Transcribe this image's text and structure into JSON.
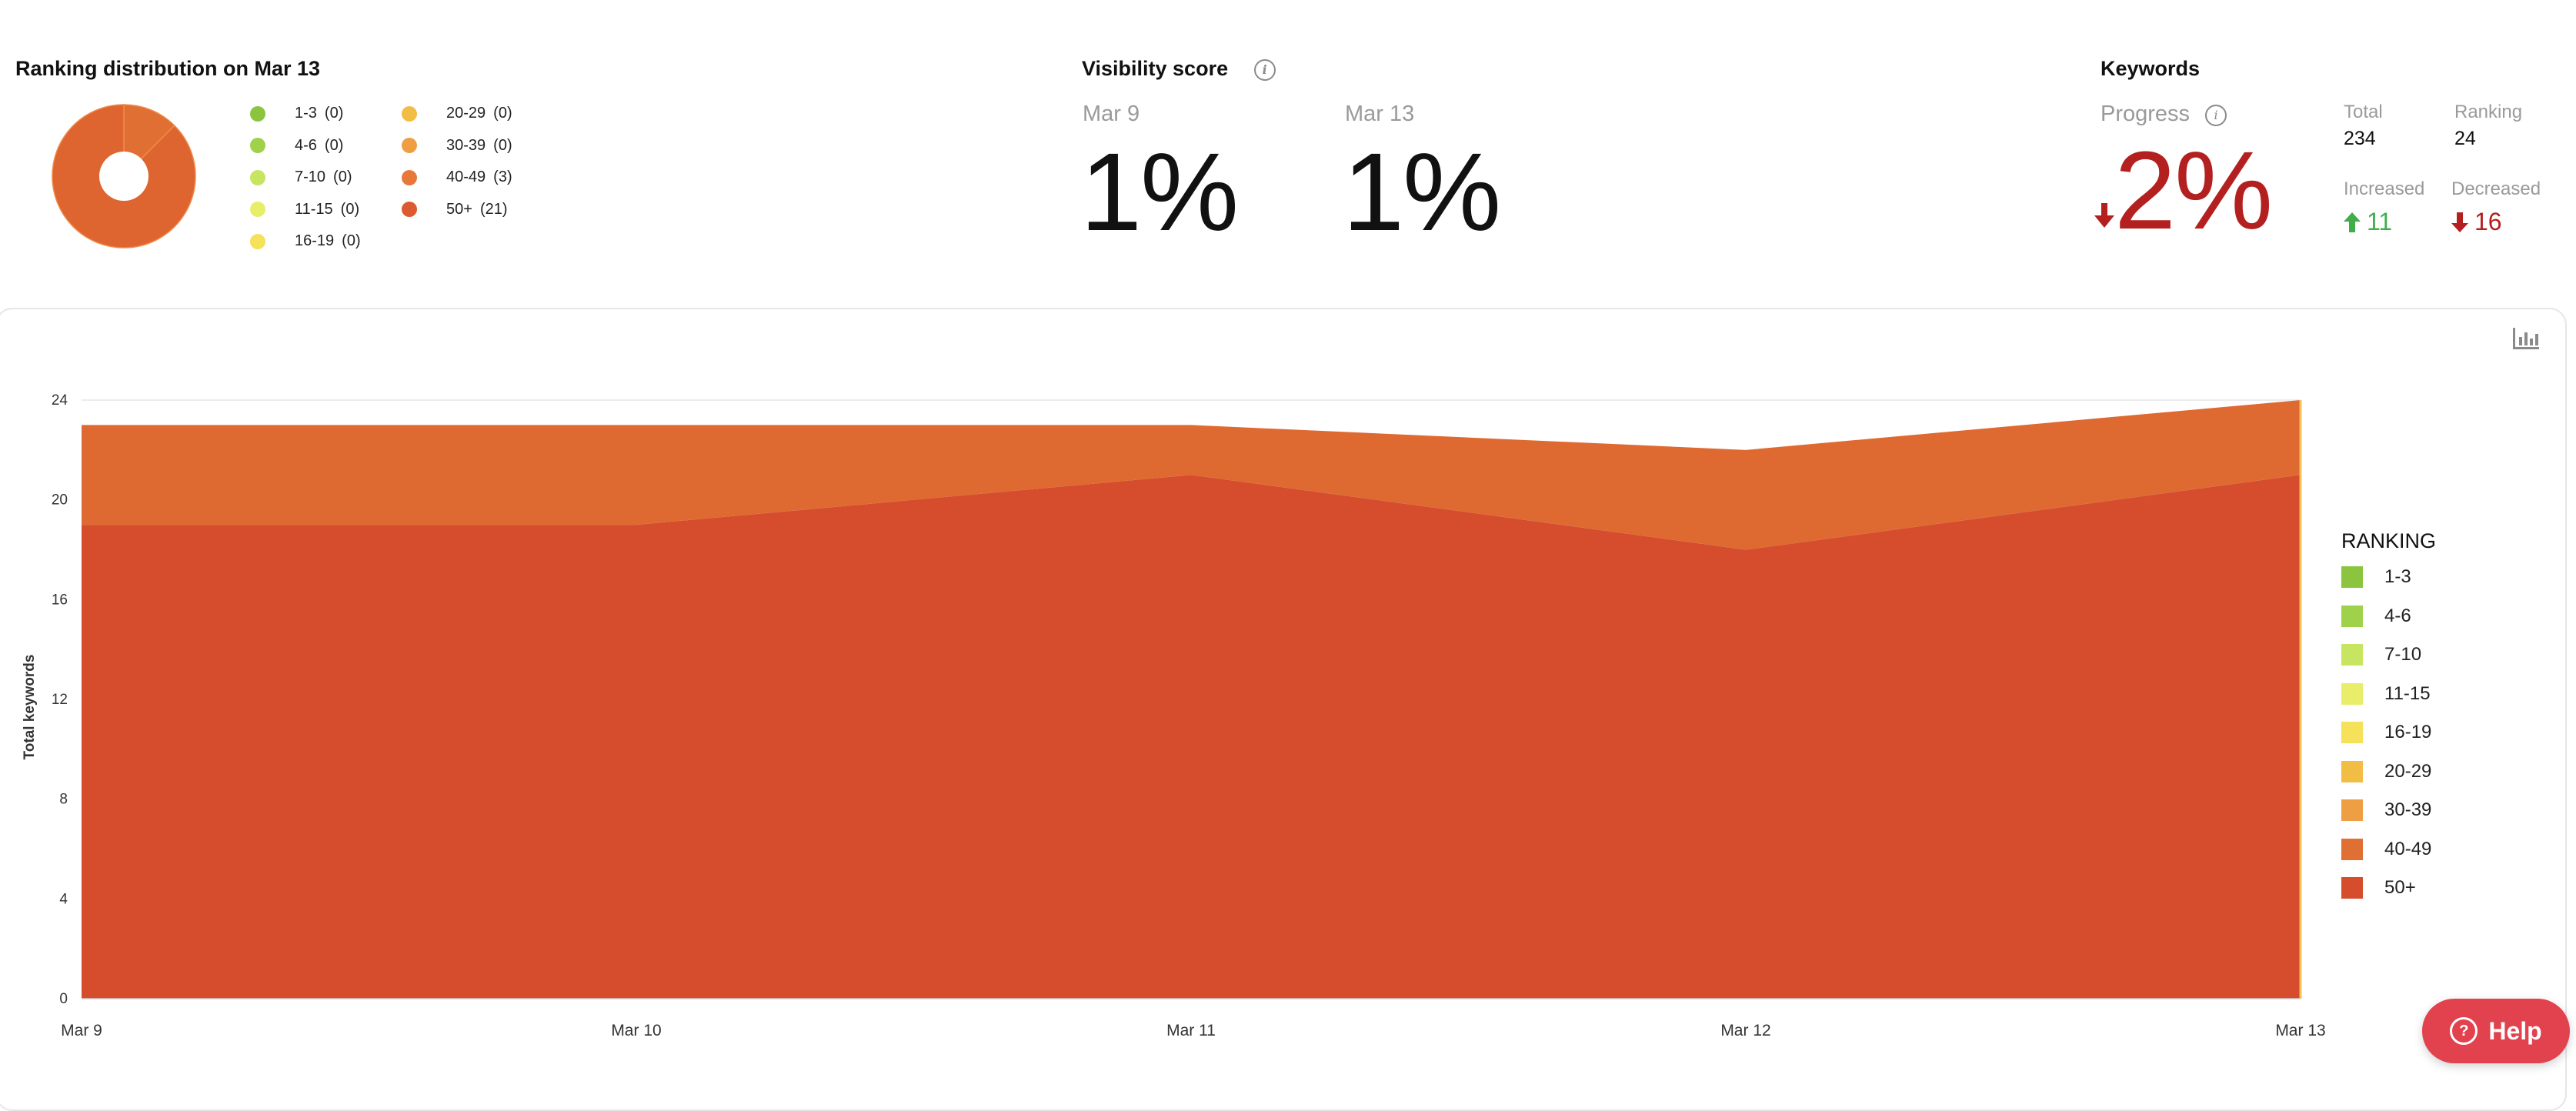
{
  "ranking_distribution": {
    "title": "Ranking distribution on Mar 13",
    "donut": [
      {
        "label": "40-49",
        "value": 3,
        "color": "#e06f33"
      },
      {
        "label": "50+",
        "value": 21,
        "color": "#de6430"
      }
    ],
    "legend": [
      {
        "label": "1-3",
        "count": "(0)",
        "color": "#8bc53f"
      },
      {
        "label": "4-6",
        "count": "(0)",
        "color": "#9fd24a"
      },
      {
        "label": "7-10",
        "count": "(0)",
        "color": "#c7e560"
      },
      {
        "label": "11-15",
        "count": "(0)",
        "color": "#e8ee6a"
      },
      {
        "label": "16-19",
        "count": "(0)",
        "color": "#f5e15a"
      },
      {
        "label": "20-29",
        "count": "(0)",
        "color": "#f2bd45"
      },
      {
        "label": "30-39",
        "count": "(0)",
        "color": "#ef9f43"
      },
      {
        "label": "40-49",
        "count": "(3)",
        "color": "#e8783a"
      },
      {
        "label": "50+",
        "count": "(21)",
        "color": "#dc5a2f"
      }
    ]
  },
  "visibility": {
    "title": "Visibility score",
    "info_icon": "info-icon",
    "start_date": "Mar 9",
    "start_value": "1%",
    "end_date": "Mar 13",
    "end_value": "1%"
  },
  "keywords": {
    "title": "Keywords",
    "progress_label": "Progress",
    "progress_value": "2%",
    "progress_direction": "down",
    "total_label": "Total",
    "total_value": "234",
    "ranking_label": "Ranking",
    "ranking_value": "24",
    "increased_label": "Increased",
    "increased_value": "11",
    "decreased_label": "Decreased",
    "decreased_value": "16"
  },
  "chart_data": {
    "type": "area",
    "stacked": true,
    "xlabel": "",
    "ylabel": "Total keywords",
    "categories": [
      "Mar 9",
      "Mar 10",
      "Mar 11",
      "Mar 12",
      "Mar 13"
    ],
    "yticks": [
      0,
      4,
      8,
      12,
      16,
      20,
      24
    ],
    "ylim": [
      0,
      24
    ],
    "grid": true,
    "legend_title": "RANKING",
    "legend_position": "right",
    "series": [
      {
        "name": "50+",
        "color": "#d54d2d",
        "values": [
          19,
          19,
          21,
          18,
          21
        ]
      },
      {
        "name": "40-49",
        "color": "#de6a32",
        "values": [
          4,
          4,
          2,
          4,
          3
        ]
      }
    ],
    "legend": [
      {
        "label": "1-3",
        "color": "#8bc53f"
      },
      {
        "label": "4-6",
        "color": "#9fd24a"
      },
      {
        "label": "7-10",
        "color": "#c7e560"
      },
      {
        "label": "11-15",
        "color": "#e8ee6a"
      },
      {
        "label": "16-19",
        "color": "#f5e15a"
      },
      {
        "label": "20-29",
        "color": "#f2bd45"
      },
      {
        "label": "30-39",
        "color": "#ef9f43"
      },
      {
        "label": "40-49",
        "color": "#e06f33"
      },
      {
        "label": "50+",
        "color": "#d54d2d"
      }
    ]
  },
  "help": {
    "label": "Help",
    "icon": "question-circle-icon"
  },
  "chart_toolbar": {
    "icon": "bar-chart-icon"
  }
}
